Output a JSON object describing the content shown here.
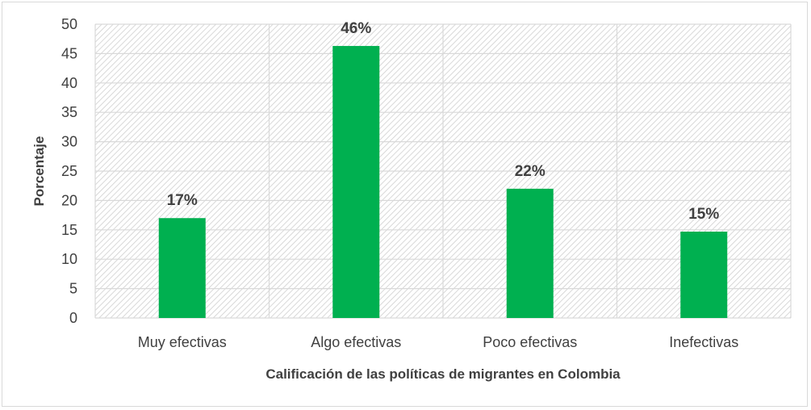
{
  "chart_data": {
    "type": "bar",
    "categories": [
      "Muy efectivas",
      "Algo efectivas",
      "Poco efectivas",
      "Inefectivas"
    ],
    "values": [
      17,
      46.3,
      22,
      14.7
    ],
    "data_labels": [
      "17%",
      "46%",
      "22%",
      "15%"
    ],
    "xlabel": "Calificación de las políticas de migrantes en Colombia",
    "ylabel": "Porcentaje",
    "ylim": [
      0,
      50
    ],
    "yticks": [
      "0",
      "5",
      "10",
      "15",
      "20",
      "25",
      "30",
      "35",
      "40",
      "45",
      "50"
    ],
    "grid": true,
    "legend": "none",
    "colors": {
      "bar": "#00b050",
      "grid": "#d9d9d9",
      "hatch": "#d0d0d0",
      "text": "#404040"
    }
  }
}
